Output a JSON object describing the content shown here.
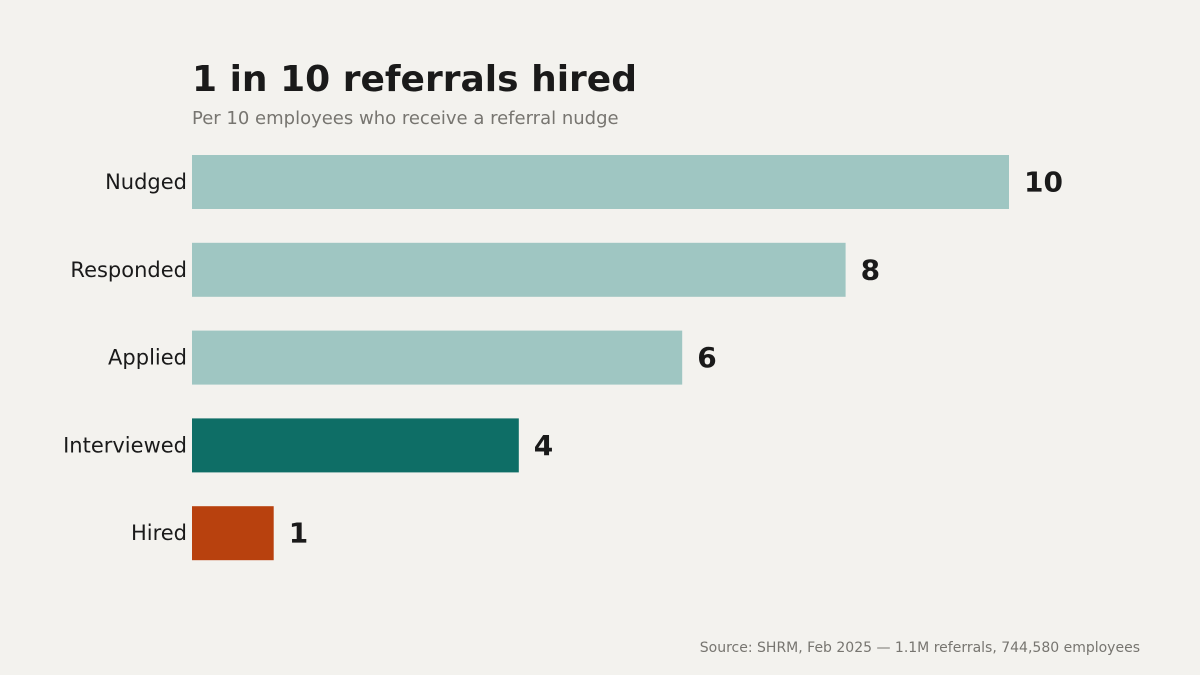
{
  "chart_data": {
    "type": "bar",
    "orientation": "horizontal",
    "title": "1 in 10 referrals hired",
    "subtitle": "Per 10 employees who receive a referral nudge",
    "categories": [
      "Nudged",
      "Responded",
      "Applied",
      "Interviewed",
      "Hired"
    ],
    "values": [
      10,
      8,
      6,
      4,
      1
    ],
    "value_labels": [
      "10",
      "8",
      "6",
      "4",
      "1"
    ],
    "colors": [
      "#9fc6c2",
      "#9fc6c2",
      "#9fc6c2",
      "#0e6e66",
      "#b8410e"
    ],
    "xlim": [
      0,
      10
    ],
    "grid": false,
    "legend": "none",
    "source": "Source: SHRM, Feb 2025 — 1.1M referrals, 744,580 employees"
  }
}
